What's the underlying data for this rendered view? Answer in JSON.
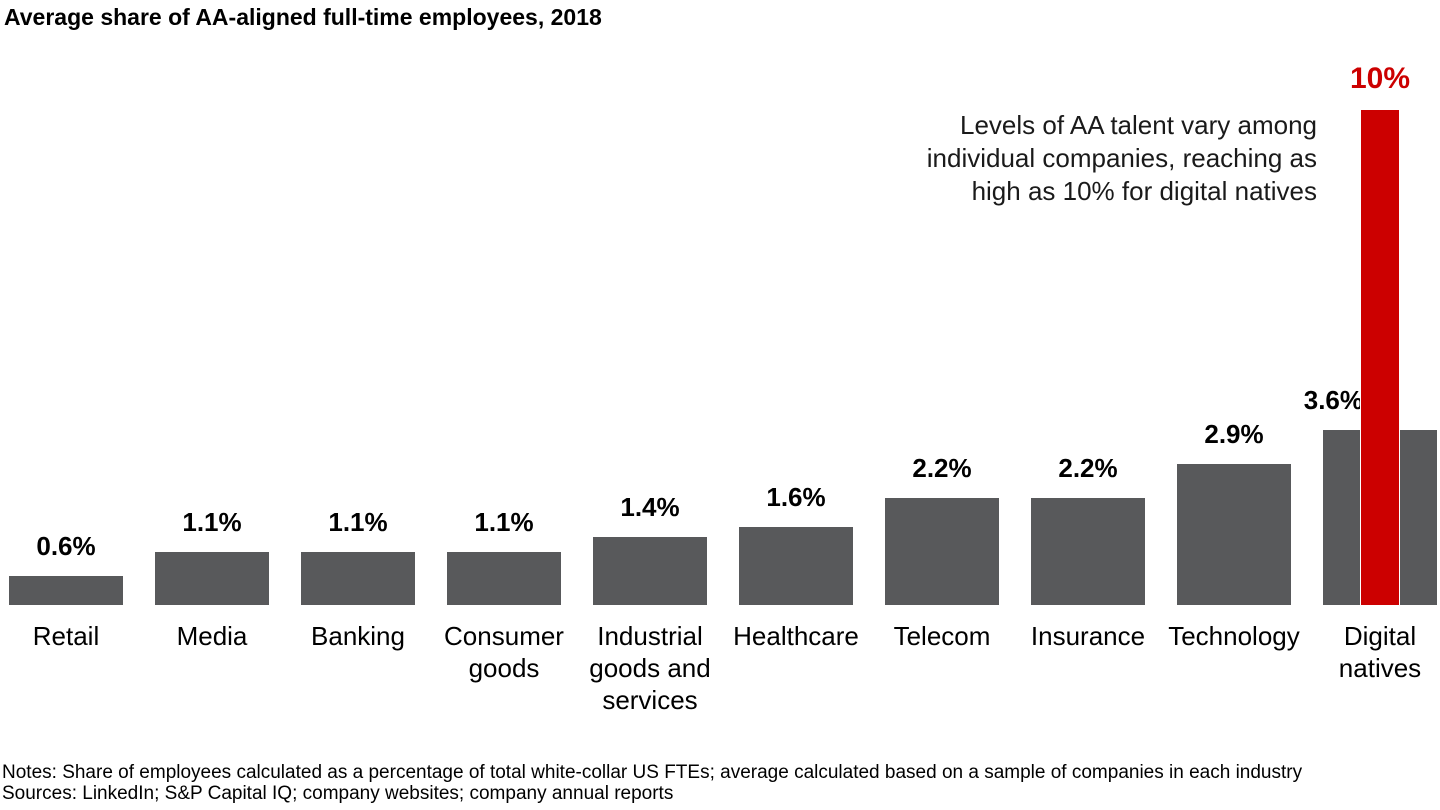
{
  "title": "Average share of AA-aligned full-time employees, 2018",
  "annotation": {
    "lines": [
      "Levels of AA talent vary among",
      "individual companies, reaching as",
      "high as 10% for digital natives"
    ]
  },
  "footer": {
    "notes": "Notes: Share of employees calculated as a percentage of total white-collar US FTEs; average calculated based on a sample of companies in each industry",
    "sources": "Sources: LinkedIn; S&P Capital IQ; company websites; company annual reports"
  },
  "colors": {
    "bar_gray": "#58595b",
    "highlight_red": "#cc0000",
    "text_black": "#000000"
  },
  "chart_data": {
    "type": "bar",
    "title": "Average share of AA-aligned full-time employees, 2018",
    "unit": "%",
    "categories": [
      "Retail",
      "Media",
      "Banking",
      "Consumer goods",
      "Industrial goods and services",
      "Healthcare",
      "Telecom",
      "Insurance",
      "Technology",
      "Digital natives"
    ],
    "category_label_lines": [
      [
        "Retail"
      ],
      [
        "Media"
      ],
      [
        "Banking"
      ],
      [
        "Consumer",
        "goods"
      ],
      [
        "Industrial",
        "goods and",
        "services"
      ],
      [
        "Healthcare"
      ],
      [
        "Telecom"
      ],
      [
        "Insurance"
      ],
      [
        "Technology"
      ],
      [
        "Digital",
        "natives"
      ]
    ],
    "values": [
      0.6,
      1.1,
      1.1,
      1.1,
      1.4,
      1.6,
      2.2,
      2.2,
      2.9,
      3.6
    ],
    "value_labels": [
      "0.6%",
      "1.1%",
      "1.1%",
      "1.1%",
      "1.4%",
      "1.6%",
      "2.2%",
      "2.2%",
      "2.9%",
      "3.6%"
    ],
    "highlight": {
      "category": "Digital natives",
      "value": 10,
      "label": "10%"
    },
    "ylim": [
      0,
      10
    ],
    "xlabel": "",
    "ylabel": "",
    "legend": false,
    "gridlines": false,
    "axis_lines": false
  }
}
